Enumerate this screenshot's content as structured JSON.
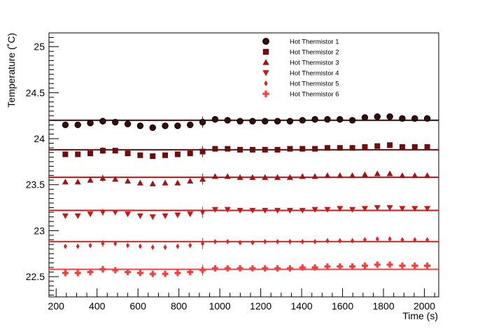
{
  "chart_data": {
    "type": "scatter",
    "title": "",
    "xlabel": "Time (s)",
    "ylabel": "Temperature (˚C)",
    "xlim": [
      165,
      2070
    ],
    "ylim": [
      22.28,
      25.15
    ],
    "x_ticks": [
      200,
      400,
      600,
      800,
      1000,
      1200,
      1400,
      1600,
      1800,
      2000
    ],
    "y_ticks": [
      22.5,
      23,
      23.5,
      24,
      24.5,
      25
    ],
    "y_tick_labels": [
      "22.5",
      "23",
      "23.5",
      "24",
      "24.5",
      "25"
    ],
    "x": [
      245,
      306,
      367,
      428,
      489,
      550,
      611,
      672,
      733,
      794,
      855,
      916,
      977,
      1038,
      1099,
      1160,
      1221,
      1282,
      1343,
      1404,
      1465,
      1526,
      1587,
      1648,
      1709,
      1770,
      1831,
      1892,
      1953,
      2014
    ],
    "legend_position": "top-right",
    "grid": false,
    "series": [
      {
        "name": "Hot Thermistor 1",
        "marker": "circle",
        "color": "#3a0a0a",
        "fit_line": 24.2,
        "values": [
          24.15,
          24.15,
          24.17,
          24.19,
          24.18,
          24.16,
          24.14,
          24.12,
          24.14,
          24.14,
          24.15,
          24.18,
          24.21,
          24.2,
          24.19,
          24.19,
          24.19,
          24.19,
          24.19,
          24.2,
          24.21,
          24.21,
          24.21,
          24.2,
          24.23,
          24.24,
          24.24,
          24.22,
          24.22,
          24.22
        ]
      },
      {
        "name": "Hot Thermistor 2",
        "marker": "square",
        "color": "#6b0e0e",
        "fit_line": 23.88,
        "values": [
          23.83,
          23.83,
          23.84,
          23.87,
          23.87,
          23.84,
          23.82,
          23.81,
          23.82,
          23.83,
          23.84,
          23.86,
          23.89,
          23.89,
          23.88,
          23.88,
          23.88,
          23.88,
          23.89,
          23.89,
          23.89,
          23.9,
          23.9,
          23.9,
          23.91,
          23.92,
          23.93,
          23.91,
          23.91,
          23.91
        ]
      },
      {
        "name": "Hot Thermistor 3",
        "marker": "triangle-up",
        "color": "#a01414",
        "fit_line": 23.58,
        "values": [
          23.53,
          23.53,
          23.55,
          23.57,
          23.56,
          23.54,
          23.52,
          23.51,
          23.52,
          23.52,
          23.54,
          23.56,
          23.59,
          23.59,
          23.58,
          23.58,
          23.58,
          23.58,
          23.58,
          23.59,
          23.59,
          23.6,
          23.6,
          23.6,
          23.61,
          23.62,
          23.62,
          23.6,
          23.6,
          23.6
        ]
      },
      {
        "name": "Hot Thermistor 4",
        "marker": "triangle-down",
        "color": "#c41a1a",
        "fit_line": 23.22,
        "values": [
          23.16,
          23.16,
          23.18,
          23.2,
          23.2,
          23.18,
          23.16,
          23.15,
          23.16,
          23.17,
          23.18,
          23.2,
          23.23,
          23.23,
          23.22,
          23.22,
          23.22,
          23.22,
          23.22,
          23.22,
          23.23,
          23.23,
          23.24,
          23.23,
          23.24,
          23.25,
          23.25,
          23.24,
          23.24,
          23.24
        ]
      },
      {
        "name": "Hot Thermistor 5",
        "marker": "diamond",
        "color": "#dc2626",
        "fit_line": 22.88,
        "values": [
          22.83,
          22.83,
          22.84,
          22.86,
          22.86,
          22.84,
          22.83,
          22.82,
          22.82,
          22.83,
          22.84,
          22.86,
          22.88,
          22.88,
          22.87,
          22.87,
          22.88,
          22.88,
          22.88,
          22.88,
          22.88,
          22.89,
          22.89,
          22.89,
          22.9,
          22.91,
          22.91,
          22.9,
          22.9,
          22.9
        ]
      },
      {
        "name": "Hot Thermistor 6",
        "marker": "cross",
        "color": "#f04040",
        "fit_line": 22.58,
        "values": [
          22.54,
          22.54,
          22.55,
          22.58,
          22.57,
          22.55,
          22.54,
          22.53,
          22.53,
          22.54,
          22.55,
          22.57,
          22.59,
          22.59,
          22.59,
          22.59,
          22.59,
          22.59,
          22.59,
          22.6,
          22.6,
          22.61,
          22.61,
          22.61,
          22.62,
          22.63,
          22.63,
          22.62,
          22.62,
          22.62
        ]
      }
    ]
  }
}
